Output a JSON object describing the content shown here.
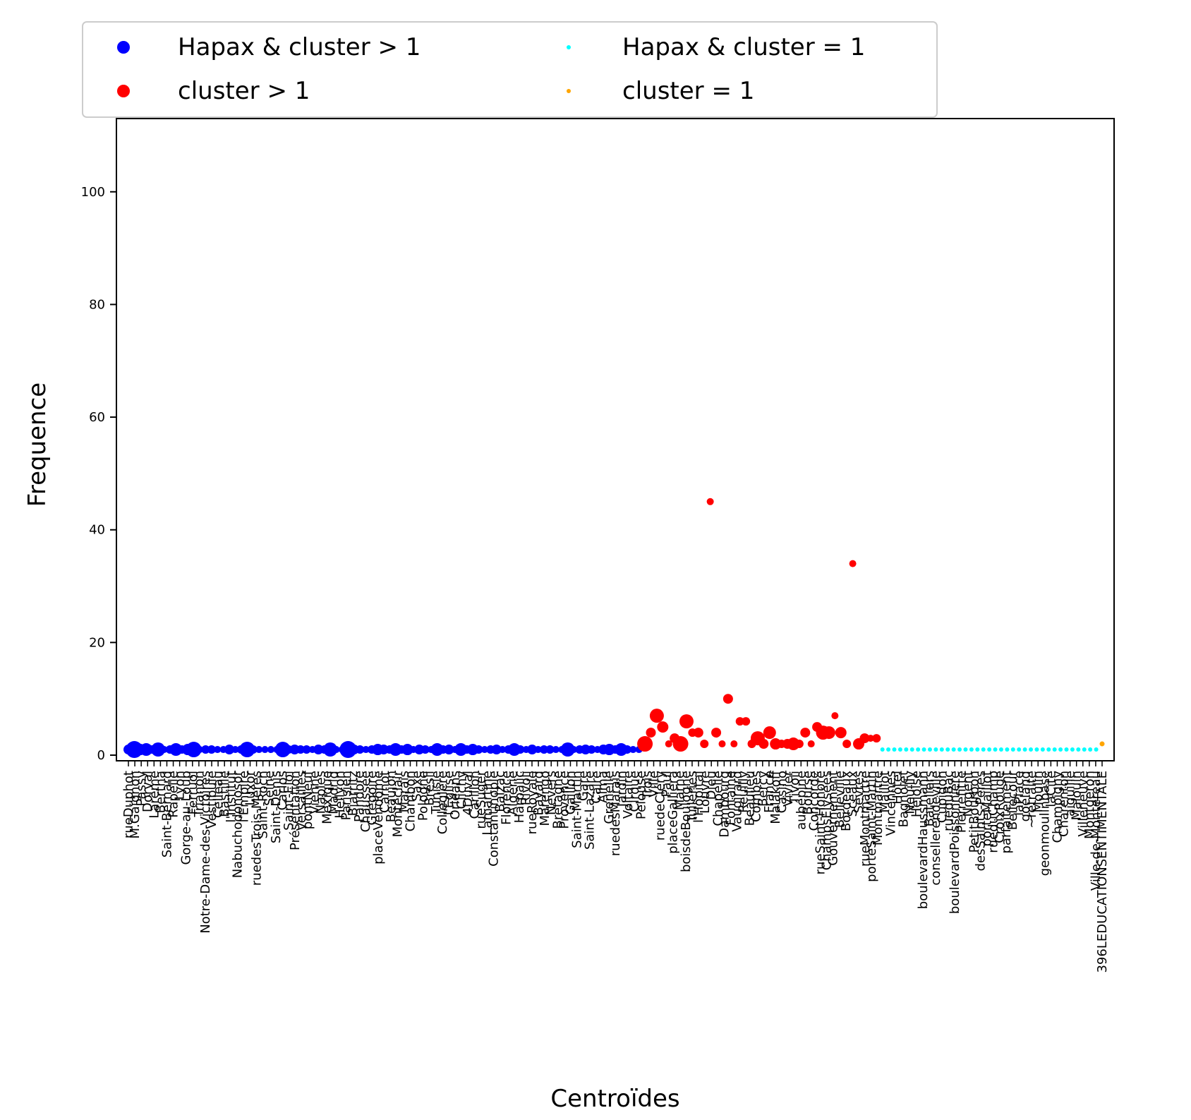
{
  "chart_data": {
    "type": "scatter",
    "xlabel": "Centroïdes",
    "ylabel": "Frequence",
    "ylim": [
      -1,
      113
    ],
    "yticks": [
      0,
      20,
      40,
      60,
      80,
      100
    ],
    "legend_position": "top, outside axes",
    "grid": false,
    "colors": {
      "hapax_gt1": "#0000ff",
      "cluster_gt1": "#ff0000",
      "hapax_eq1": "#00ffff",
      "cluster_eq1": "#ffa500"
    },
    "series": [
      {
        "name": "Hapax & cluster > 1",
        "color": "#0000ff",
        "note": "x index 0–86, all frequency 1; marker size varies with cluster size",
        "x_start": 0,
        "y": [
          1,
          1,
          1,
          1,
          1,
          1,
          1,
          1,
          1,
          1,
          1,
          1,
          1,
          1,
          1,
          1,
          1,
          1,
          1,
          1,
          1,
          1,
          1,
          1,
          1,
          1,
          1,
          1,
          1,
          1,
          1,
          1,
          1,
          1,
          1,
          1,
          1,
          1,
          1,
          1,
          1,
          1,
          1,
          1,
          1,
          1,
          1,
          1,
          1,
          1,
          1,
          1,
          1,
          1,
          1,
          1,
          1,
          1,
          1,
          1,
          1,
          1,
          1,
          1,
          1,
          1,
          1,
          1,
          1,
          1,
          1,
          1,
          1,
          1,
          1,
          1,
          1,
          1,
          1,
          1,
          1,
          1,
          1,
          1,
          1,
          1,
          1
        ],
        "sizes": [
          7,
          12,
          8,
          9,
          6,
          10,
          5,
          6,
          9,
          6,
          8,
          11,
          5,
          6,
          6,
          5,
          5,
          7,
          5,
          6,
          11,
          6,
          5,
          5,
          5,
          5,
          11,
          6,
          7,
          6,
          6,
          5,
          7,
          6,
          10,
          5,
          5,
          12,
          7,
          6,
          5,
          6,
          8,
          7,
          6,
          9,
          6,
          8,
          5,
          7,
          6,
          5,
          9,
          6,
          7,
          5,
          9,
          6,
          8,
          6,
          5,
          6,
          7,
          5,
          6,
          9,
          6,
          5,
          7,
          5,
          6,
          6,
          5,
          5,
          10,
          5,
          6,
          7,
          6,
          5,
          7,
          8,
          6,
          9,
          6,
          5,
          5
        ]
      },
      {
        "name": "cluster > 1",
        "color": "#ff0000",
        "x_start": 87,
        "y": [
          2,
          4,
          7,
          5,
          2,
          3,
          2,
          6,
          4,
          4,
          2,
          45,
          4,
          2,
          10,
          2,
          6,
          6,
          2,
          3,
          2,
          4,
          2,
          2,
          2,
          2,
          2,
          4,
          2,
          5,
          4,
          4,
          7,
          4,
          2,
          34,
          2,
          3,
          3,
          3
        ],
        "sizes": [
          11,
          7,
          10,
          8,
          5,
          7,
          11,
          10,
          6,
          7,
          6,
          5,
          7,
          5,
          7,
          5,
          6,
          6,
          6,
          10,
          7,
          9,
          8,
          6,
          7,
          9,
          6,
          7,
          5,
          7,
          10,
          9,
          5,
          8,
          6,
          5,
          8,
          7,
          5,
          6
        ]
      },
      {
        "name": "Hapax & cluster = 1",
        "color": "#00ffff",
        "x_start": 127,
        "count": 37,
        "value": 1,
        "size": 3
      },
      {
        "name": "cluster = 1",
        "color": "#ffa500",
        "x_start": 164,
        "y": [
          2
        ],
        "sizes": [
          3.5
        ]
      }
    ],
    "tick_labels": [
      "rueDuphot",
      "M.Gaignon",
      "Passy",
      "Dorval",
      "Larème",
      "Bertha",
      "Saint-Bernard",
      "Rapelle",
      "Lyon",
      "Gorge-au-Loup",
      "Ferruol",
      "Trianon",
      "Notre-Dame-des-Victoires",
      "Vestibule",
      "Celleau",
      "Bastille",
      "l'Institut",
      "Nabuchodonosor",
      "l'Empire",
      "Luxor",
      "ruedesTrois-Mères",
      "Saint-Roch",
      "Seine",
      "Saint-Denis",
      "Carlos",
      "Saint-Eloi",
      "Présentation",
      "Versailles",
      "pontNeuf",
      "Vienne",
      "Naples",
      "Mexique",
      "Madrid",
      "Hellyon",
      "Parisien",
      "Biarritz",
      "Pandore",
      "Chaussée",
      "Grégoire",
      "placeVendôme",
      "Carnot",
      "Beaujon",
      "Montéclair",
      "Marais",
      "Chambon",
      "Saxe",
      "Pologne",
      "Brésil",
      "Tunisie",
      "Colleglère",
      "l'Église",
      "Orléans",
      "Clichy",
      "4Duval",
      "Carillon",
      "rueSuger",
      "Lamartine",
      "Constantinople",
      "Balzac",
      "Florence",
      "Algérie",
      "Harpalic",
      "Rivoli",
      "rueRoyale",
      "Bayard",
      "Marengo",
      "Nevers",
      "Bretagne",
      "Provence",
      "Gaillon",
      "Saint-Martin",
      "Gare",
      "Saint-Lazare",
      "Caire",
      "Alma",
      "Grenelle",
      "ruedesMarais",
      "Jardin",
      "Voltaire",
      "Cirque",
      "Pelouse",
      "Trois",
      "Ville",
      "ruedeCléry",
      "Paul",
      "placeGalliera",
      "Marne",
      "boisdeBoulogne",
      "Tuileries",
      "l'Hôpital",
      "Louvre",
      "Dieu",
      "Chapelle",
      "Dambourg",
      "Fontaine",
      "Vaugirard",
      "Reuilly",
      "Beaulieu",
      "Combes",
      "Bercy",
      "France",
      "Malakoff",
      "Casino",
      "Vivier",
      "Tivoli",
      "aubépine",
      "Bourse",
      "Concorde",
      "rueSaint-Honoré",
      "ChampsElysées",
      "Gouvernement",
      "Belleville",
      "Bordeaux",
      "Sceaux",
      "Sèvres",
      "rueMontmartre",
      "porteSaint-Martin",
      "Montmartre",
      "Maillot",
      "Vincennes",
      "Hôtel",
      "Bagnolet",
      "Neuilly",
      "Heloïse",
      "boulevardHaussmann",
      "Bateliers",
      "consellerendeville",
      "Cupidon",
      "rueduBac",
      "boulevardPoissonnière",
      "Pierrefitte",
      "Nogent",
      "PetitBourbon",
      "desSaints-Pères",
      "porteMaillot",
      "rueduChamp",
      "CroixRouge",
      "parfaitement",
      "Bellecour",
      "laPlace",
      "goéland",
      "~retraite",
      "Moulin",
      "geonmoulinbase",
      "laCité",
      "Champigny",
      "Charenton",
      "aiguille",
      "Malouin",
      "Villeneuve",
      "Montgeron",
      "Ville-de-Montereau",
      "396LEDUCATIONSENTIMENTALE"
    ]
  }
}
